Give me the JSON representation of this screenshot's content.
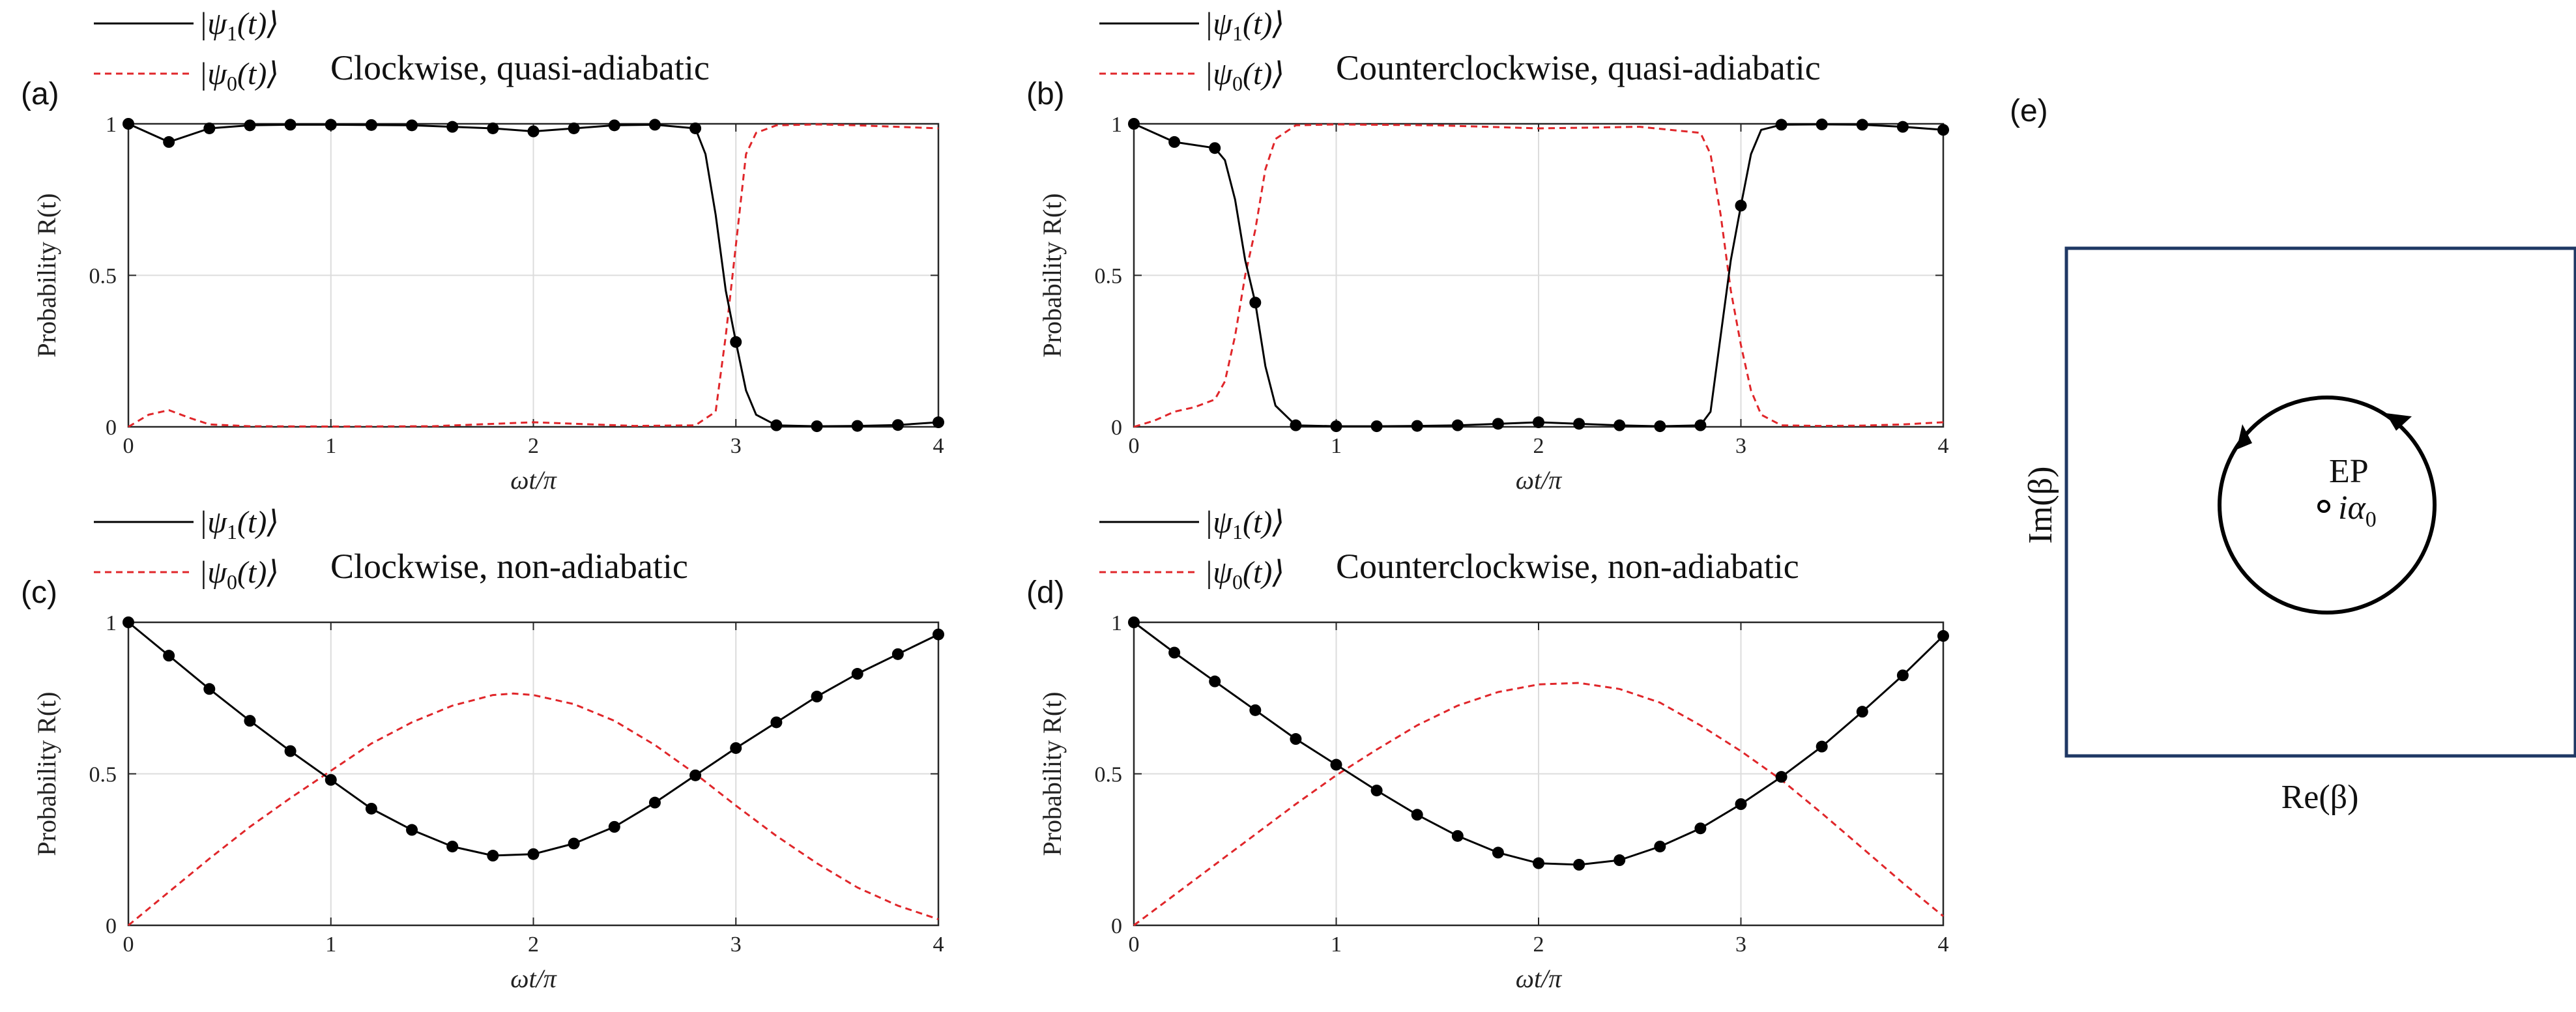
{
  "chart_data": [
    {
      "type": "line",
      "panel_label": "(a)",
      "title": "Clockwise, quasi-adiabatic",
      "xlabel": "ωt/π",
      "ylabel": "Probability R(t)",
      "xlim": [
        0,
        4
      ],
      "ylim": [
        0,
        1
      ],
      "xticks": [
        "0",
        "1",
        "2",
        "3",
        "4"
      ],
      "yticks": [
        "0",
        "0.5",
        "1"
      ],
      "grid": true,
      "legend_position": "top-left",
      "series": [
        {
          "name": "|ψ1(t)⟩",
          "color": "#000000",
          "style": "solid",
          "markers": true,
          "x": [
            0,
            0.2,
            0.4,
            0.6,
            0.8,
            1.0,
            1.2,
            1.4,
            1.6,
            1.8,
            2.0,
            2.2,
            2.4,
            2.6,
            2.8,
            2.85,
            2.9,
            2.95,
            3.0,
            3.05,
            3.1,
            3.2,
            3.4,
            3.6,
            3.8,
            4.0
          ],
          "y": [
            1.0,
            0.94,
            0.985,
            0.995,
            0.997,
            0.997,
            0.996,
            0.995,
            0.99,
            0.985,
            0.975,
            0.985,
            0.995,
            0.997,
            0.985,
            0.9,
            0.7,
            0.45,
            0.28,
            0.12,
            0.04,
            0.005,
            0.002,
            0.003,
            0.006,
            0.015
          ],
          "marker_x": [
            0,
            0.2,
            0.4,
            0.6,
            0.8,
            1.0,
            1.2,
            1.4,
            1.6,
            1.8,
            2.0,
            2.2,
            2.4,
            2.6,
            2.8,
            3.0,
            3.2,
            3.4,
            3.6,
            3.8,
            4.0
          ]
        },
        {
          "name": "|ψ0(t)⟩",
          "color": "#e0262a",
          "style": "dashed",
          "markers": false,
          "x": [
            0,
            0.1,
            0.2,
            0.3,
            0.4,
            0.6,
            1.0,
            1.5,
            2.0,
            2.5,
            2.8,
            2.9,
            2.95,
            3.0,
            3.05,
            3.1,
            3.2,
            3.4,
            3.6,
            3.8,
            4.0
          ],
          "y": [
            0.0,
            0.04,
            0.055,
            0.03,
            0.008,
            0.002,
            0.001,
            0.002,
            0.015,
            0.003,
            0.005,
            0.05,
            0.3,
            0.6,
            0.9,
            0.97,
            0.995,
            0.998,
            0.995,
            0.99,
            0.985
          ]
        }
      ]
    },
    {
      "type": "line",
      "panel_label": "(b)",
      "title": "Counterclockwise, quasi-adiabatic",
      "xlabel": "ωt/π",
      "ylabel": "Probability R(t)",
      "xlim": [
        0,
        4
      ],
      "ylim": [
        0,
        1
      ],
      "xticks": [
        "0",
        "1",
        "2",
        "3",
        "4"
      ],
      "yticks": [
        "0",
        "0.5",
        "1"
      ],
      "grid": true,
      "legend_position": "top-left",
      "series": [
        {
          "name": "|ψ1(t)⟩",
          "color": "#000000",
          "style": "solid",
          "markers": true,
          "x": [
            0,
            0.2,
            0.4,
            0.45,
            0.5,
            0.55,
            0.6,
            0.65,
            0.7,
            0.8,
            1.0,
            1.2,
            1.4,
            1.6,
            1.8,
            2.0,
            2.2,
            2.4,
            2.6,
            2.8,
            2.85,
            2.9,
            2.95,
            3.0,
            3.05,
            3.1,
            3.2,
            3.4,
            3.6,
            3.8,
            4.0
          ],
          "y": [
            1.0,
            0.94,
            0.92,
            0.88,
            0.75,
            0.55,
            0.41,
            0.2,
            0.07,
            0.005,
            0.002,
            0.002,
            0.003,
            0.005,
            0.01,
            0.015,
            0.01,
            0.005,
            0.002,
            0.005,
            0.05,
            0.3,
            0.55,
            0.73,
            0.9,
            0.98,
            0.997,
            0.998,
            0.997,
            0.99,
            0.98
          ],
          "marker_x": [
            0,
            0.2,
            0.4,
            0.6,
            0.8,
            1.0,
            1.2,
            1.4,
            1.6,
            1.8,
            2.0,
            2.2,
            2.4,
            2.6,
            2.8,
            3.0,
            3.2,
            3.4,
            3.6,
            3.8,
            4.0
          ],
          "marker_y": [
            1.0,
            0.94,
            0.92,
            0.41,
            0.005,
            0.002,
            0.002,
            0.003,
            0.005,
            0.01,
            0.015,
            0.01,
            0.005,
            0.002,
            0.005,
            0.73,
            0.997,
            0.998,
            0.997,
            0.99,
            0.98
          ]
        },
        {
          "name": "|ψ0(t)⟩",
          "color": "#e0262a",
          "style": "dashed",
          "markers": false,
          "x": [
            0,
            0.1,
            0.2,
            0.3,
            0.4,
            0.45,
            0.5,
            0.55,
            0.6,
            0.65,
            0.7,
            0.8,
            1.0,
            1.5,
            2.0,
            2.5,
            2.8,
            2.85,
            2.9,
            2.95,
            3.0,
            3.05,
            3.1,
            3.2,
            3.4,
            3.6,
            3.8,
            4.0
          ],
          "y": [
            0.0,
            0.02,
            0.05,
            0.065,
            0.09,
            0.15,
            0.3,
            0.5,
            0.65,
            0.85,
            0.95,
            0.995,
            0.998,
            0.995,
            0.985,
            0.99,
            0.97,
            0.9,
            0.7,
            0.45,
            0.27,
            0.12,
            0.04,
            0.005,
            0.003,
            0.004,
            0.008,
            0.015
          ]
        }
      ]
    },
    {
      "type": "line",
      "panel_label": "(c)",
      "title": "Clockwise, non-adiabatic",
      "xlabel": "ωt/π",
      "ylabel": "Probability R(t)",
      "xlim": [
        0,
        4
      ],
      "ylim": [
        0,
        1
      ],
      "xticks": [
        "0",
        "1",
        "2",
        "3",
        "4"
      ],
      "yticks": [
        "0",
        "0.5",
        "1"
      ],
      "grid": true,
      "legend_position": "top-left",
      "series": [
        {
          "name": "|ψ1(t)⟩",
          "color": "#000000",
          "style": "solid",
          "markers": true,
          "x": [
            0,
            0.2,
            0.4,
            0.6,
            0.8,
            1.0,
            1.2,
            1.4,
            1.6,
            1.8,
            2.0,
            2.2,
            2.4,
            2.6,
            2.8,
            3.0,
            3.2,
            3.4,
            3.6,
            3.8,
            4.0
          ],
          "y": [
            1.0,
            0.89,
            0.78,
            0.675,
            0.575,
            0.48,
            0.385,
            0.315,
            0.26,
            0.23,
            0.235,
            0.27,
            0.325,
            0.405,
            0.495,
            0.585,
            0.67,
            0.755,
            0.83,
            0.895,
            0.96
          ]
        },
        {
          "name": "|ψ0(t)⟩",
          "color": "#e0262a",
          "style": "dashed",
          "markers": false,
          "x": [
            0,
            0.2,
            0.4,
            0.6,
            0.8,
            1.0,
            1.2,
            1.4,
            1.6,
            1.8,
            1.9,
            2.0,
            2.2,
            2.4,
            2.6,
            2.8,
            3.0,
            3.2,
            3.4,
            3.6,
            3.8,
            4.0
          ],
          "y": [
            0.0,
            0.11,
            0.22,
            0.325,
            0.42,
            0.51,
            0.6,
            0.67,
            0.725,
            0.76,
            0.765,
            0.76,
            0.73,
            0.675,
            0.595,
            0.5,
            0.395,
            0.295,
            0.205,
            0.125,
            0.065,
            0.02
          ]
        }
      ]
    },
    {
      "type": "line",
      "panel_label": "(d)",
      "title": "Counterclockwise, non-adiabatic",
      "xlabel": "ωt/π",
      "ylabel": "Probability R(t)",
      "xlim": [
        0,
        4
      ],
      "ylim": [
        0,
        1
      ],
      "xticks": [
        "0",
        "1",
        "2",
        "3",
        "4"
      ],
      "yticks": [
        "0",
        "0.5",
        "1"
      ],
      "grid": true,
      "legend_position": "top-left",
      "series": [
        {
          "name": "|ψ1(t)⟩",
          "color": "#000000",
          "style": "solid",
          "markers": true,
          "x": [
            0,
            0.2,
            0.4,
            0.6,
            0.8,
            1.0,
            1.2,
            1.4,
            1.6,
            1.8,
            2.0,
            2.2,
            2.4,
            2.6,
            2.8,
            3.0,
            3.2,
            3.4,
            3.6,
            3.8,
            4.0
          ],
          "y": [
            1.0,
            0.9,
            0.805,
            0.71,
            0.615,
            0.53,
            0.445,
            0.365,
            0.295,
            0.24,
            0.205,
            0.2,
            0.215,
            0.26,
            0.32,
            0.4,
            0.49,
            0.59,
            0.705,
            0.825,
            0.955
          ]
        },
        {
          "name": "|ψ0(t)⟩",
          "color": "#e0262a",
          "style": "dashed",
          "markers": false,
          "x": [
            0,
            0.2,
            0.4,
            0.6,
            0.8,
            1.0,
            1.2,
            1.4,
            1.6,
            1.8,
            2.0,
            2.2,
            2.4,
            2.6,
            2.8,
            3.0,
            3.2,
            3.4,
            3.6,
            3.8,
            4.0
          ],
          "y": [
            0.0,
            0.1,
            0.2,
            0.3,
            0.4,
            0.495,
            0.58,
            0.66,
            0.725,
            0.77,
            0.795,
            0.8,
            0.78,
            0.735,
            0.66,
            0.575,
            0.48,
            0.37,
            0.255,
            0.14,
            0.03
          ]
        }
      ]
    }
  ],
  "diagram": {
    "panel_label": "(e)",
    "xlabel": "Re(β)",
    "ylabel": "Im(β)",
    "ep_label": "EP",
    "point_label": "iα0"
  }
}
